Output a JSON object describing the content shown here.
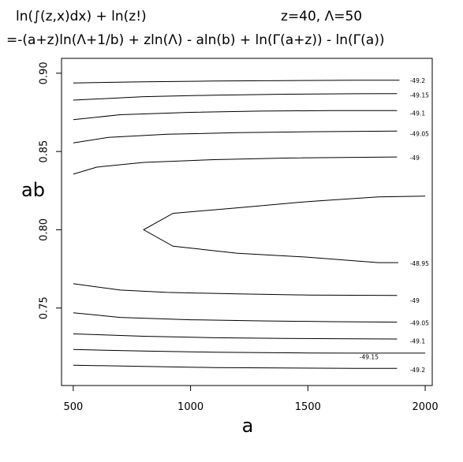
{
  "header": {
    "title_line1_left": "ln(∫(z,x)dx) +  ln(z!)",
    "title_line1_right": "z=40, Λ=50",
    "title_line2": "=-(a+z)ln(Λ+1/b) + zln(Λ)  - aln(b) + ln(Γ(a+z)) - ln(Γ(a))"
  },
  "chart_data": {
    "type": "contour",
    "title": "ln(∫(z,x)dx) +  ln(z!)   z=40, Λ=50",
    "subtitle": "=-(a+z)ln(Λ+1/b) + zln(Λ)  - aln(b) + ln(Γ(a+z)) - ln(Γ(a))",
    "xlabel": "a",
    "ylabel": "ab",
    "xlim": [
      450,
      2030
    ],
    "ylim": [
      0.7005,
      0.9095
    ],
    "xticks": [
      500,
      1000,
      1500,
      2000
    ],
    "yticks": [
      0.75,
      0.8,
      0.85,
      0.9
    ],
    "xtick_labels": [
      "500",
      "1000",
      "1500",
      "2000"
    ],
    "ytick_labels": [
      "0.75",
      "0.80",
      "0.85",
      "0.90"
    ],
    "grid": false,
    "contours": [
      {
        "level": "-49.2",
        "x": [
          500,
          800,
          1100,
          1400,
          1700,
          1890
        ],
        "y": [
          0.8938,
          0.8945,
          0.895,
          0.8953,
          0.8955,
          0.8955
        ],
        "label_at": [
          1935,
          0.8955
        ]
      },
      {
        "level": "-49.15",
        "x": [
          500,
          800,
          1100,
          1400,
          1700,
          1880
        ],
        "y": [
          0.8828,
          0.885,
          0.886,
          0.8866,
          0.8869,
          0.887
        ],
        "label_at": [
          1935,
          0.886
        ]
      },
      {
        "level": "-49.1",
        "x": [
          500,
          700,
          1000,
          1300,
          1600,
          1880
        ],
        "y": [
          0.8703,
          0.8735,
          0.875,
          0.8758,
          0.8761,
          0.8761
        ],
        "label_at": [
          1935,
          0.8745
        ]
      },
      {
        "level": "-49.05",
        "x": [
          500,
          650,
          900,
          1200,
          1500,
          1880
        ],
        "y": [
          0.8555,
          0.859,
          0.861,
          0.862,
          0.8626,
          0.863
        ],
        "label_at": [
          1935,
          0.8615
        ]
      },
      {
        "level": "-49",
        "x": [
          500,
          600,
          800,
          1100,
          1400,
          1880
        ],
        "y": [
          0.8355,
          0.84,
          0.843,
          0.8448,
          0.8458,
          0.8465
        ],
        "label_at": [
          1935,
          0.846
        ]
      },
      {
        "level": "-48.95",
        "x": [
          2000,
          1800,
          1500,
          1200,
          925,
          800,
          925,
          1200,
          1500,
          1800,
          1885
        ],
        "y": [
          0.8215,
          0.821,
          0.818,
          0.814,
          0.8105,
          0.8,
          0.7895,
          0.785,
          0.7825,
          0.779,
          0.779
        ],
        "label_at": [
          1935,
          0.7785
        ]
      },
      {
        "level": "-49",
        "x": [
          500,
          700,
          900,
          1200,
          1500,
          1880
        ],
        "y": [
          0.7655,
          0.7615,
          0.76,
          0.759,
          0.7583,
          0.758
        ],
        "label_at": [
          1935,
          0.755
        ]
      },
      {
        "level": "-49.05",
        "x": [
          500,
          700,
          1000,
          1300,
          1600,
          1880
        ],
        "y": [
          0.747,
          0.744,
          0.7425,
          0.7418,
          0.7413,
          0.741
        ],
        "label_at": [
          1935,
          0.7405
        ]
      },
      {
        "level": "-49.1",
        "x": [
          500,
          800,
          1100,
          1400,
          1700,
          1880
        ],
        "y": [
          0.7335,
          0.732,
          0.731,
          0.7306,
          0.7303,
          0.7302
        ],
        "label_at": [
          1935,
          0.729
        ]
      },
      {
        "level": "-49.15",
        "x": [
          500,
          800,
          1100,
          1300,
          1500,
          1660,
          1800,
          2000
        ],
        "y": [
          0.7235,
          0.7225,
          0.7218,
          0.7215,
          0.7213,
          0.7212,
          0.7212,
          0.7212
        ],
        "label_at": [
          1720,
          0.719
        ]
      },
      {
        "level": "-49.2",
        "x": [
          500,
          800,
          1100,
          1400,
          1700,
          1880
        ],
        "y": [
          0.7135,
          0.7127,
          0.712,
          0.7117,
          0.7115,
          0.7115
        ],
        "label_at": [
          1935,
          0.7105
        ]
      }
    ]
  }
}
